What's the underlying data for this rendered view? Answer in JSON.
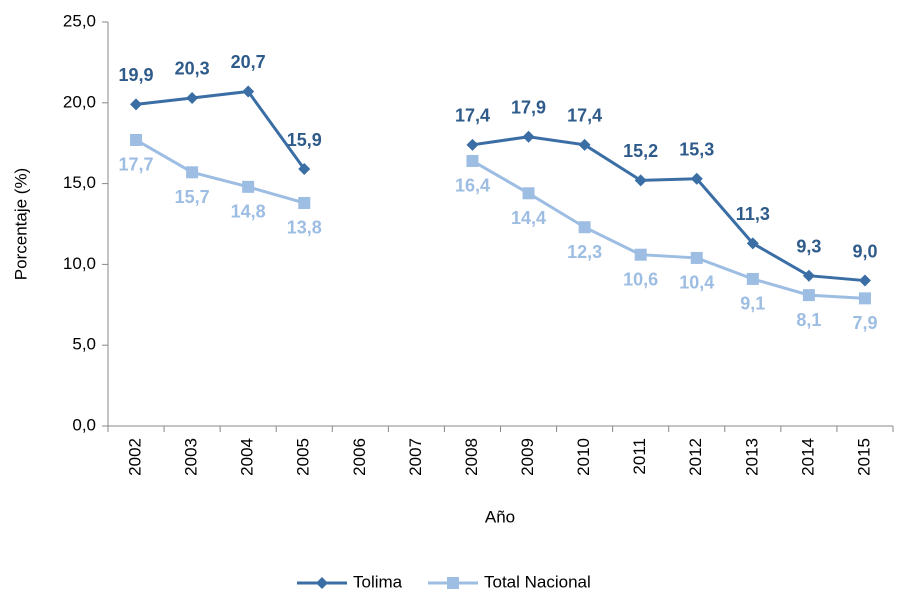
{
  "chart_data": {
    "type": "line",
    "x_label": "Año",
    "y_label": "Porcentaje (%)",
    "categories": [
      "2002",
      "2003",
      "2004",
      "2005",
      "2006",
      "2007",
      "2008",
      "2009",
      "2010",
      "2011",
      "2012",
      "2013",
      "2014",
      "2015"
    ],
    "series": [
      {
        "name": "Tolima",
        "color": "#3a6ea5",
        "marker": "diamond",
        "values": [
          19.9,
          20.3,
          20.7,
          15.9,
          null,
          null,
          17.4,
          17.9,
          17.4,
          15.2,
          15.3,
          11.3,
          9.3,
          9.0
        ],
        "value_labels": [
          "19,9",
          "20,3",
          "20,7",
          "15,9",
          null,
          null,
          "17,4",
          "17,9",
          "17,4",
          "15,2",
          "15,3",
          "11,3",
          "9,3",
          "9,0"
        ]
      },
      {
        "name": "Total Nacional",
        "color": "#9dbde3",
        "marker": "square",
        "values": [
          17.7,
          15.7,
          14.8,
          13.8,
          null,
          null,
          16.4,
          14.4,
          12.3,
          10.6,
          10.4,
          9.1,
          8.1,
          7.9
        ],
        "value_labels": [
          "17,7",
          "15,7",
          "14,8",
          "13,8",
          null,
          null,
          "16,4",
          "14,4",
          "12,3",
          "10,6",
          "10,4",
          "9,1",
          "8,1",
          "7,9"
        ]
      }
    ],
    "ylim": [
      0,
      25
    ],
    "yticks": [
      {
        "value": 0,
        "label": "0,0"
      },
      {
        "value": 5,
        "label": "5,0"
      },
      {
        "value": 10,
        "label": "10,0"
      },
      {
        "value": 15,
        "label": "15,0"
      },
      {
        "value": 20,
        "label": "20,0"
      },
      {
        "value": 25,
        "label": "25,0"
      }
    ],
    "grid": false,
    "legend": "bottom"
  }
}
